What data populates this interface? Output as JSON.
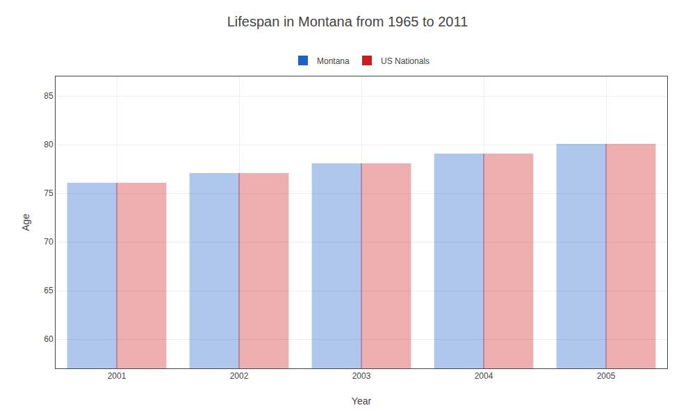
{
  "chart_data": {
    "type": "bar",
    "title": "Lifespan in Montana from 1965 to 2011",
    "xlabel": "Year",
    "ylabel": "Age",
    "categories": [
      "2001",
      "2002",
      "2003",
      "2004",
      "2005"
    ],
    "series": [
      {
        "name": "Montana",
        "color": "#1e5fcc",
        "values": [
          76,
          77,
          78,
          79,
          80
        ]
      },
      {
        "name": "US Nationals",
        "color": "#cc1e1e",
        "values": [
          76,
          77,
          78,
          79,
          80
        ]
      }
    ],
    "ylim": [
      57,
      87
    ],
    "yticks": [
      60,
      65,
      70,
      75,
      80,
      85
    ],
    "grid": true,
    "legend": "top"
  }
}
